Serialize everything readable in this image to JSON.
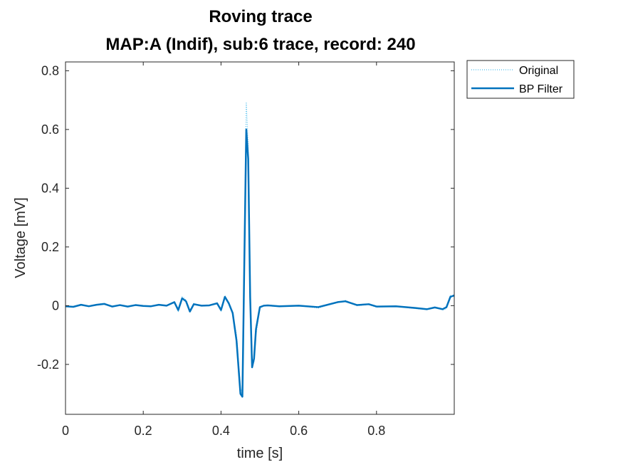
{
  "chart_data": {
    "type": "line",
    "title": [
      "Roving trace",
      "MAP:A (Indif), sub:6 trace, record: 240"
    ],
    "xlabel": "time [s]",
    "ylabel": "Voltage [mV]",
    "xlim": [
      0,
      1
    ],
    "ylim": [
      -0.37,
      0.83
    ],
    "xticks": [
      0,
      0.2,
      0.4,
      0.6,
      0.8
    ],
    "xtick_labels": [
      "0",
      "0.2",
      "0.4",
      "0.6",
      "0.8"
    ],
    "yticks": [
      -0.2,
      0,
      0.2,
      0.4,
      0.6,
      0.8
    ],
    "ytick_labels": [
      "-0.2",
      "0",
      "0.2",
      "0.4",
      "0.6",
      "0.8"
    ],
    "grid": false,
    "legend_position": "outside-top-right",
    "series": [
      {
        "name": "Original",
        "style": "dotted",
        "color": "#4DBEEE",
        "x": [
          0,
          0.02,
          0.04,
          0.06,
          0.08,
          0.1,
          0.12,
          0.14,
          0.16,
          0.18,
          0.2,
          0.22,
          0.24,
          0.26,
          0.28,
          0.29,
          0.3,
          0.31,
          0.32,
          0.33,
          0.35,
          0.37,
          0.39,
          0.4,
          0.41,
          0.42,
          0.43,
          0.44,
          0.45,
          0.455,
          0.46,
          0.465,
          0.47,
          0.475,
          0.48,
          0.485,
          0.49,
          0.5,
          0.51,
          0.52,
          0.55,
          0.6,
          0.65,
          0.7,
          0.72,
          0.75,
          0.78,
          0.8,
          0.85,
          0.9,
          0.93,
          0.95,
          0.97,
          0.98,
          0.99,
          1.0
        ],
        "y": [
          0.0,
          -0.005,
          0.005,
          -0.003,
          0.004,
          0.008,
          -0.002,
          0.003,
          -0.002,
          0.003,
          0.0,
          -0.003,
          0.004,
          0.0,
          0.01,
          -0.02,
          0.03,
          0.02,
          -0.015,
          0.008,
          0.0,
          0.002,
          0.01,
          -0.02,
          0.035,
          0.01,
          -0.03,
          -0.1,
          -0.28,
          -0.3,
          0.2,
          0.69,
          0.55,
          0.05,
          -0.2,
          -0.19,
          -0.1,
          -0.01,
          0.0,
          0.002,
          -0.003,
          0.0,
          -0.008,
          0.01,
          0.018,
          0.0,
          0.004,
          -0.005,
          -0.002,
          -0.01,
          -0.012,
          -0.005,
          -0.015,
          -0.01,
          0.035,
          0.03
        ]
      },
      {
        "name": "BP Filter",
        "style": "solid",
        "color": "#0072BD",
        "x": [
          0,
          0.02,
          0.04,
          0.06,
          0.08,
          0.1,
          0.12,
          0.14,
          0.16,
          0.18,
          0.2,
          0.22,
          0.24,
          0.26,
          0.28,
          0.29,
          0.3,
          0.31,
          0.32,
          0.33,
          0.35,
          0.37,
          0.39,
          0.4,
          0.41,
          0.42,
          0.43,
          0.44,
          0.45,
          0.455,
          0.46,
          0.465,
          0.47,
          0.475,
          0.48,
          0.485,
          0.49,
          0.5,
          0.51,
          0.52,
          0.55,
          0.6,
          0.65,
          0.7,
          0.72,
          0.75,
          0.78,
          0.8,
          0.85,
          0.9,
          0.93,
          0.95,
          0.97,
          0.98,
          0.99,
          1.0
        ],
        "y": [
          -0.002,
          -0.004,
          0.003,
          -0.002,
          0.003,
          0.006,
          -0.003,
          0.002,
          -0.003,
          0.002,
          -0.001,
          -0.002,
          0.003,
          0.0,
          0.012,
          -0.015,
          0.025,
          0.015,
          -0.02,
          0.005,
          0.0,
          0.001,
          0.008,
          -0.015,
          0.03,
          0.008,
          -0.025,
          -0.12,
          -0.3,
          -0.31,
          0.15,
          0.6,
          0.5,
          0.03,
          -0.21,
          -0.18,
          -0.08,
          -0.005,
          0.0,
          0.001,
          -0.002,
          0.0,
          -0.005,
          0.012,
          0.015,
          0.002,
          0.005,
          -0.003,
          -0.002,
          -0.008,
          -0.012,
          -0.006,
          -0.012,
          -0.005,
          0.03,
          0.035
        ]
      }
    ]
  }
}
